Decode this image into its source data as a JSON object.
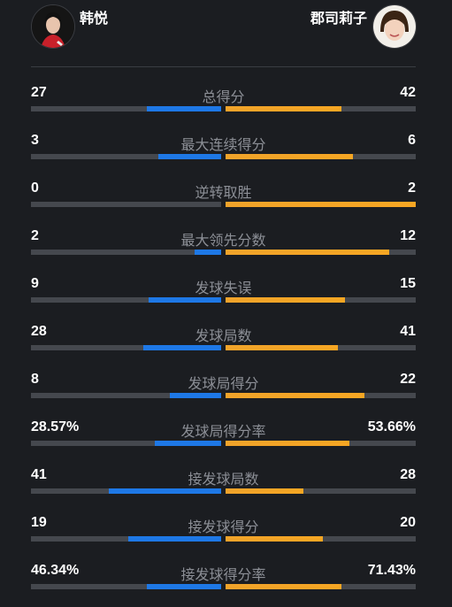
{
  "players": {
    "left": {
      "name": "韩悦"
    },
    "right": {
      "name": "郡司莉子"
    }
  },
  "colors": {
    "left_bar": "#1e78e6",
    "right_bar": "#f6a623",
    "track": "#45484e"
  },
  "stats": [
    {
      "label": "总得分",
      "left": "27",
      "right": "42",
      "left_share": 0.39,
      "right_share": 0.61
    },
    {
      "label": "最大连续得分",
      "left": "3",
      "right": "6",
      "left_share": 0.33,
      "right_share": 0.67
    },
    {
      "label": "逆转取胜",
      "left": "0",
      "right": "2",
      "left_share": 0.0,
      "right_share": 1.0
    },
    {
      "label": "最大领先分数",
      "left": "2",
      "right": "12",
      "left_share": 0.14,
      "right_share": 0.86
    },
    {
      "label": "发球失误",
      "left": "9",
      "right": "15",
      "left_share": 0.38,
      "right_share": 0.63
    },
    {
      "label": "发球局数",
      "left": "28",
      "right": "41",
      "left_share": 0.41,
      "right_share": 0.59
    },
    {
      "label": "发球局得分",
      "left": "8",
      "right": "22",
      "left_share": 0.27,
      "right_share": 0.73
    },
    {
      "label": "发球局得分率",
      "left": "28.57%",
      "right": "53.66%",
      "left_share": 0.35,
      "right_share": 0.65
    },
    {
      "label": "接发球局数",
      "left": "41",
      "right": "28",
      "left_share": 0.59,
      "right_share": 0.41
    },
    {
      "label": "接发球得分",
      "left": "19",
      "right": "20",
      "left_share": 0.49,
      "right_share": 0.51
    },
    {
      "label": "接发球得分率",
      "left": "46.34%",
      "right": "71.43%",
      "left_share": 0.39,
      "right_share": 0.61
    }
  ]
}
